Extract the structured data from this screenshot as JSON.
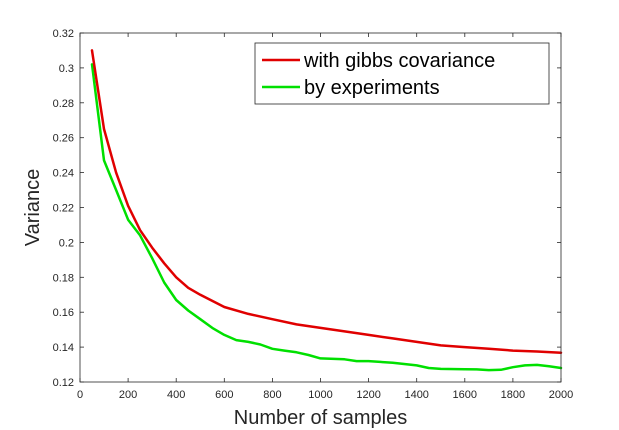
{
  "chart_data": {
    "type": "line",
    "title": "",
    "xlabel": "Number of samples",
    "ylabel": "Variance",
    "xlim": [
      0,
      2000
    ],
    "ylim": [
      0.12,
      0.32
    ],
    "xticks": [
      "0",
      "200",
      "400",
      "600",
      "800",
      "1000",
      "1200",
      "1400",
      "1600",
      "1800",
      "2000"
    ],
    "yticks": [
      "0.12",
      "0.14",
      "0.16",
      "0.18",
      "0.2",
      "0.22",
      "0.24",
      "0.26",
      "0.28",
      "0.3",
      "0.32"
    ],
    "grid": false,
    "legend_position": "top-right",
    "series": [
      {
        "name": "with gibbs covariance",
        "color": "#e00000",
        "x": [
          50,
          100,
          150,
          200,
          250,
          300,
          350,
          400,
          450,
          500,
          600,
          700,
          800,
          900,
          1000,
          1100,
          1200,
          1300,
          1400,
          1500,
          1600,
          1700,
          1800,
          1900,
          2000
        ],
        "y": [
          0.31,
          0.265,
          0.24,
          0.221,
          0.207,
          0.197,
          0.188,
          0.18,
          0.174,
          0.17,
          0.163,
          0.159,
          0.156,
          0.153,
          0.151,
          0.149,
          0.147,
          0.145,
          0.143,
          0.141,
          0.14,
          0.139,
          0.138,
          0.1375,
          0.1368
        ]
      },
      {
        "name": "by experiments",
        "color": "#00e000",
        "x": [
          50,
          100,
          150,
          200,
          250,
          300,
          350,
          400,
          450,
          500,
          550,
          600,
          650,
          700,
          750,
          800,
          850,
          900,
          950,
          1000,
          1100,
          1150,
          1200,
          1300,
          1400,
          1450,
          1500,
          1600,
          1650,
          1700,
          1750,
          1800,
          1850,
          1900,
          1950,
          2000
        ],
        "y": [
          0.302,
          0.247,
          0.23,
          0.213,
          0.204,
          0.191,
          0.177,
          0.167,
          0.161,
          0.156,
          0.151,
          0.147,
          0.144,
          0.143,
          0.1415,
          0.139,
          0.138,
          0.137,
          0.1355,
          0.1335,
          0.133,
          0.132,
          0.132,
          0.131,
          0.1295,
          0.128,
          0.1275,
          0.1273,
          0.1272,
          0.1268,
          0.127,
          0.1285,
          0.1295,
          0.1298,
          0.129,
          0.128
        ]
      }
    ]
  }
}
